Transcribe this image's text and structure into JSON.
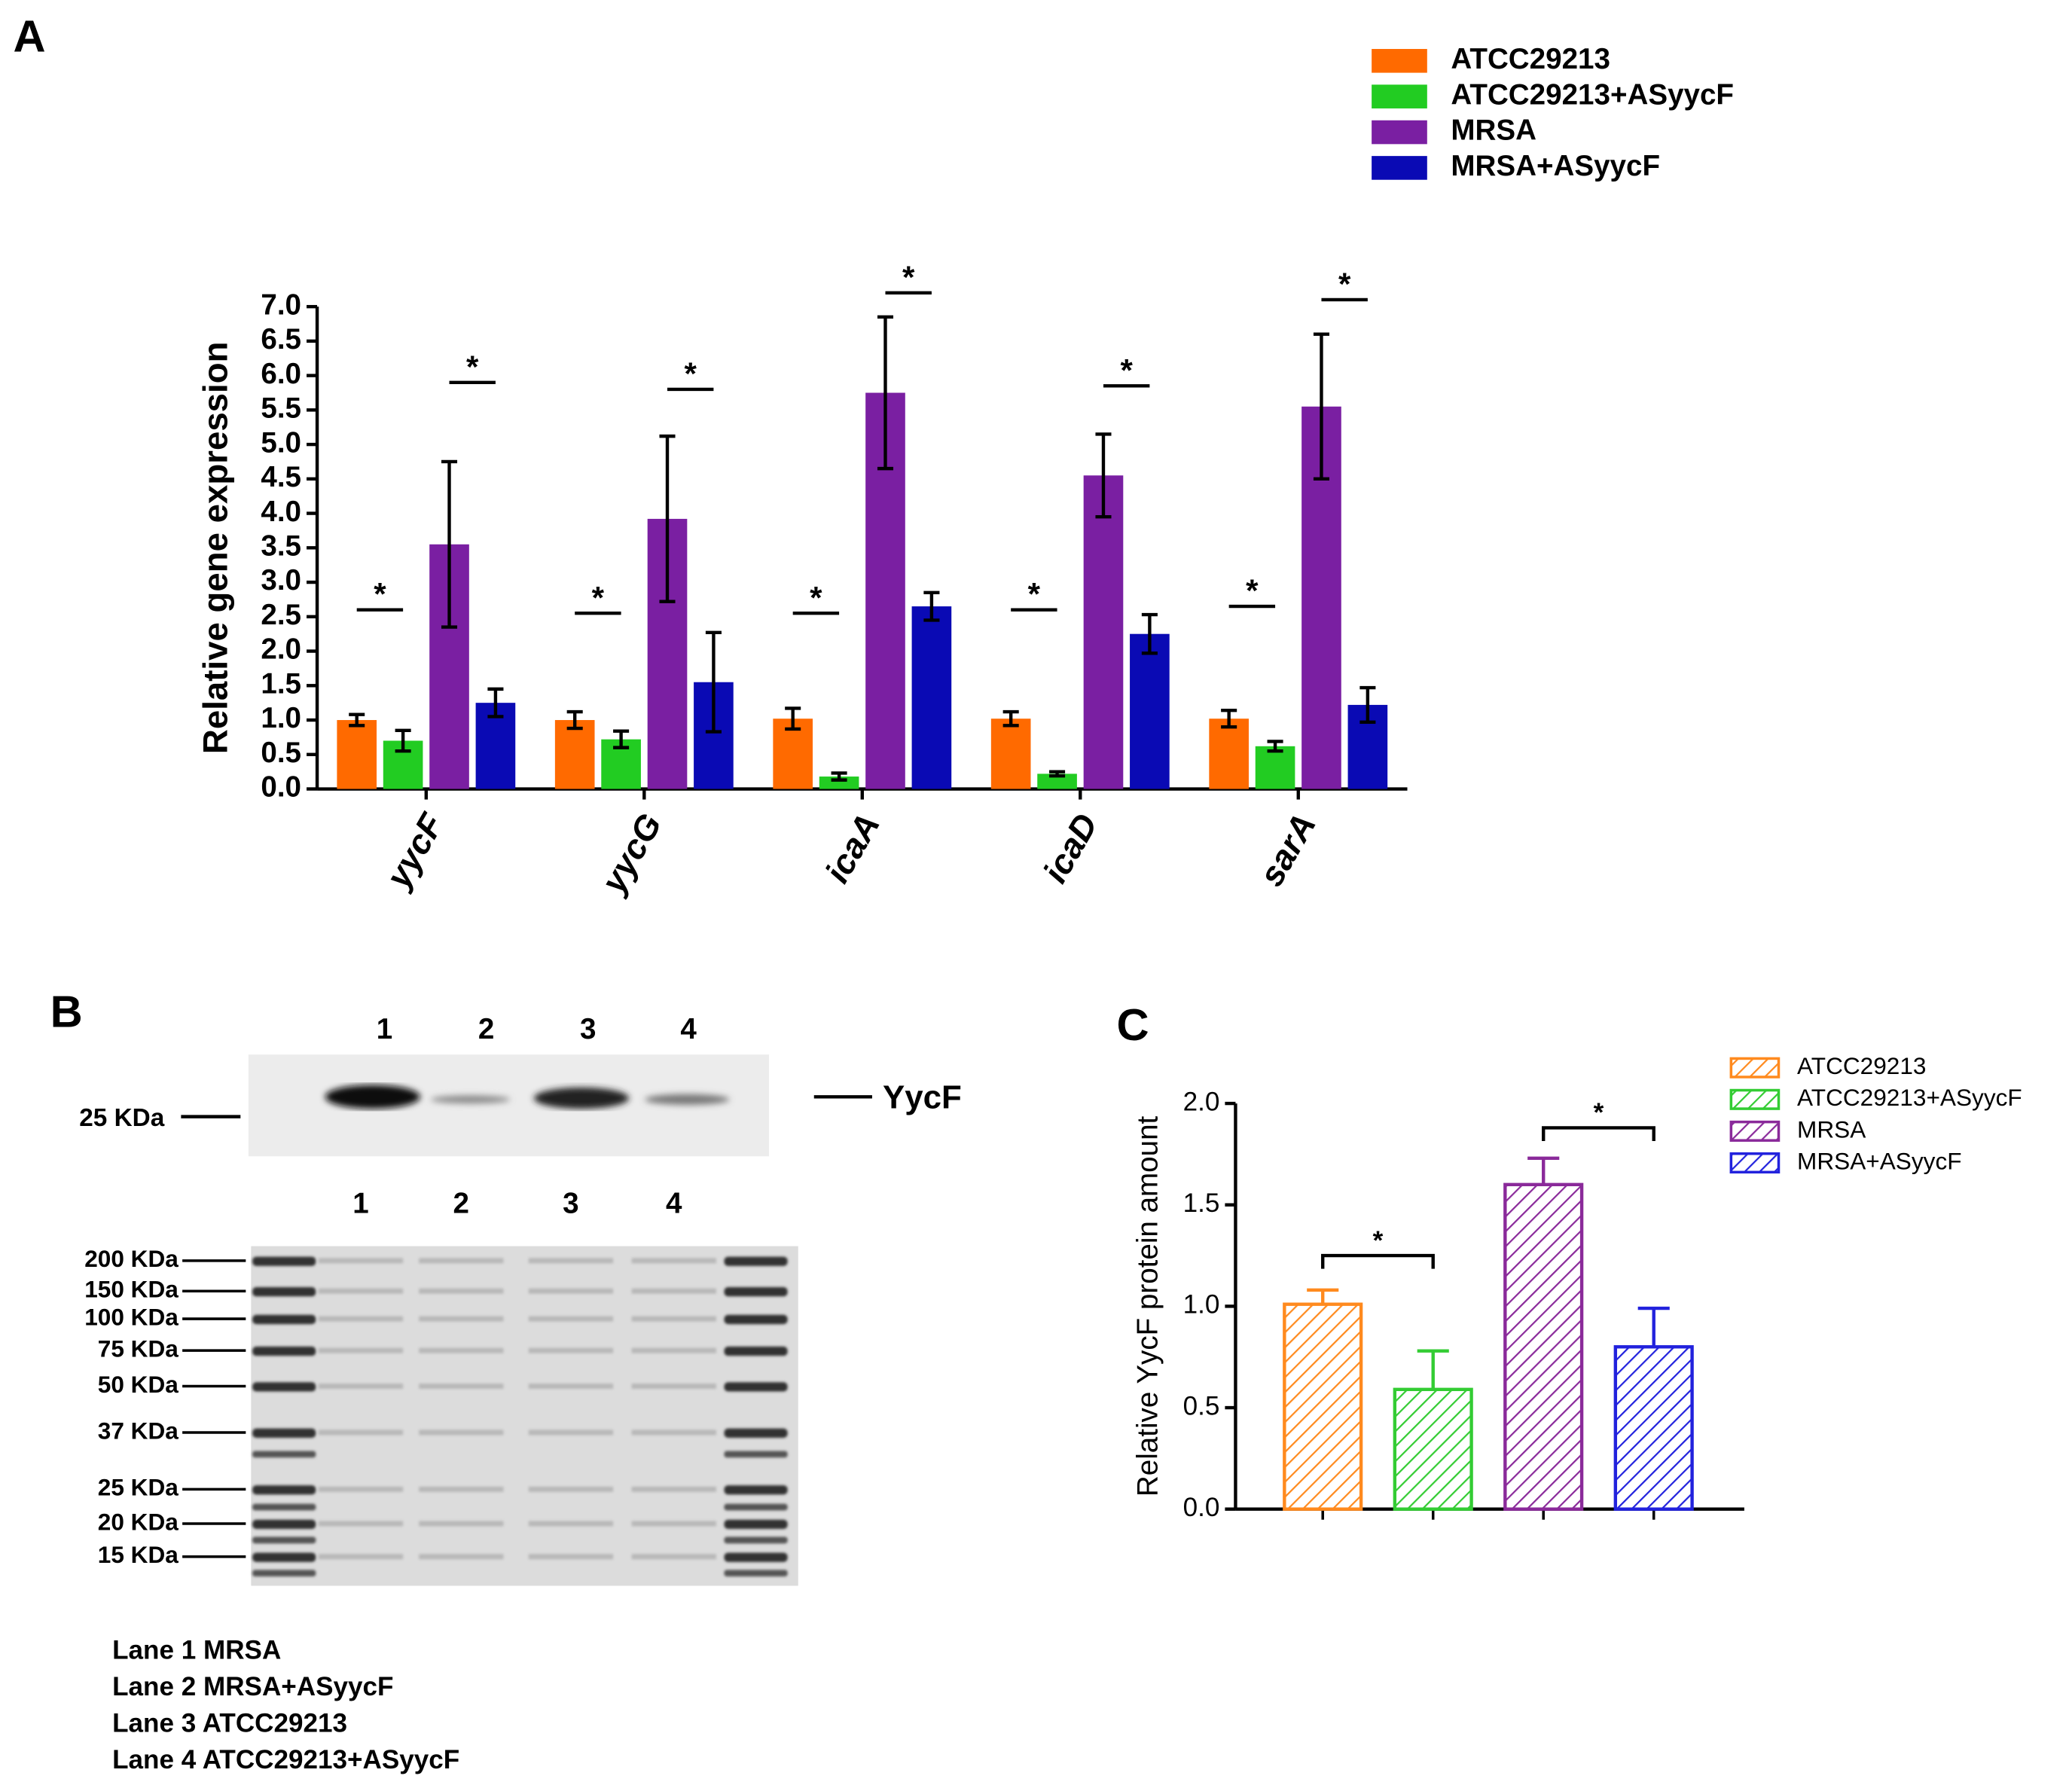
{
  "chart_data": [
    {
      "panel": "A",
      "type": "bar",
      "ylabel": "Relative gene expression",
      "categories": [
        "yycF",
        "yycG",
        "icaA",
        "icaD",
        "sarA"
      ],
      "series": [
        {
          "name": "ATCC29213",
          "color": "#ff6a00",
          "values": [
            1.0,
            1.0,
            1.02,
            1.02,
            1.02
          ],
          "errors": [
            0.08,
            0.12,
            0.15,
            0.1,
            0.12
          ]
        },
        {
          "name": "ATCC29213+ASyycF",
          "color": "#22cc22",
          "values": [
            0.7,
            0.72,
            0.18,
            0.22,
            0.62
          ],
          "errors": [
            0.15,
            0.12,
            0.05,
            0.03,
            0.07
          ]
        },
        {
          "name": "MRSA",
          "color": "#7a1fa2",
          "values": [
            3.55,
            3.92,
            5.75,
            4.55,
            5.55
          ],
          "errors": [
            1.2,
            1.2,
            1.1,
            0.6,
            1.05
          ]
        },
        {
          "name": "MRSA+ASyycF",
          "color": "#0a0ab4",
          "values": [
            1.25,
            1.55,
            2.65,
            2.25,
            1.22
          ],
          "errors": [
            0.2,
            0.72,
            0.2,
            0.28,
            0.25
          ]
        }
      ],
      "ylim": [
        0,
        7
      ],
      "yticks": [
        {
          "value": 0,
          "label": "0.0"
        },
        0.5,
        {
          "value": 1,
          "label": "1.0"
        },
        1.5,
        {
          "value": 2,
          "label": "2.0"
        },
        2.5,
        {
          "value": 3,
          "label": "3.0"
        },
        3.5,
        {
          "value": 4,
          "label": "4.0"
        },
        4.5,
        {
          "value": 5,
          "label": "5.0"
        },
        5.5,
        {
          "value": 6,
          "label": "6.0"
        },
        6.5,
        {
          "value": 7,
          "label": "7.0"
        }
      ],
      "legend": "upper right",
      "annotations": [
        {
          "text": "*",
          "category": "yycF",
          "series": [
            "ATCC29213",
            "ATCC29213+ASyycF"
          ],
          "y": 2.6
        },
        {
          "text": "*",
          "category": "yycF",
          "series": [
            "MRSA",
            "MRSA+ASyycF"
          ],
          "y": 5.9
        },
        {
          "text": "*",
          "category": "yycG",
          "series": [
            "ATCC29213",
            "ATCC29213+ASyycF"
          ],
          "y": 2.55
        },
        {
          "text": "*",
          "category": "yycG",
          "series": [
            "MRSA",
            "MRSA+ASyycF"
          ],
          "y": 5.8
        },
        {
          "text": "*",
          "category": "icaA",
          "series": [
            "ATCC29213",
            "ATCC29213+ASyycF"
          ],
          "y": 2.55
        },
        {
          "text": "*",
          "category": "icaA",
          "series": [
            "MRSA",
            "MRSA+ASyycF"
          ],
          "y": 7.2
        },
        {
          "text": "*",
          "category": "icaD",
          "series": [
            "ATCC29213",
            "ATCC29213+ASyycF"
          ],
          "y": 2.6
        },
        {
          "text": "*",
          "category": "icaD",
          "series": [
            "MRSA",
            "MRSA+ASyycF"
          ],
          "y": 5.85
        },
        {
          "text": "*",
          "category": "sarA",
          "series": [
            "ATCC29213",
            "ATCC29213+ASyycF"
          ],
          "y": 2.65
        },
        {
          "text": "*",
          "category": "sarA",
          "series": [
            "MRSA",
            "MRSA+ASyycF"
          ],
          "y": 7.1
        }
      ]
    },
    {
      "panel": "C",
      "type": "bar",
      "hatch": true,
      "ylabel": "Relative YycF protein amount",
      "series": [
        {
          "name": "ATCC29213",
          "color": "#ff8a1e",
          "values": [
            1.01
          ],
          "errors": [
            0.07
          ]
        },
        {
          "name": "ATCC29213+ASyycF",
          "color": "#33cc33",
          "values": [
            0.59
          ],
          "errors": [
            0.19
          ]
        },
        {
          "name": "MRSA",
          "color": "#8a2a9a",
          "values": [
            1.6
          ],
          "errors": [
            0.13
          ]
        },
        {
          "name": "MRSA+ASyycF",
          "color": "#2222dd",
          "values": [
            0.8
          ],
          "errors": [
            0.19
          ]
        }
      ],
      "ylim": [
        0,
        2
      ],
      "yticks": [
        {
          "value": 0,
          "label": "0.0"
        },
        0.5,
        {
          "value": 1,
          "label": "1.0"
        },
        1.5,
        {
          "value": 2,
          "label": "2.0"
        }
      ],
      "legend": "upper right",
      "annotations": [
        {
          "text": "*",
          "series": [
            "ATCC29213",
            "ATCC29213+ASyycF"
          ],
          "y": 1.25
        },
        {
          "text": "*",
          "series": [
            "MRSA",
            "MRSA+ASyycF"
          ],
          "y": 1.88
        }
      ]
    }
  ],
  "gel": {
    "panel": "B",
    "blot_lanes": [
      "1",
      "2",
      "3",
      "4"
    ],
    "blot_marker": "25 KDa",
    "blot_band": "YycF",
    "gel_lanes": [
      "1",
      "2",
      "3",
      "4"
    ],
    "markers": [
      "200 KDa",
      "150 KDa",
      "100 KDa",
      "75 KDa",
      "50 KDa",
      "37 KDa",
      "25 KDa",
      "20 KDa",
      "15 KDa"
    ],
    "lane_legend": [
      "Lane 1 MRSA",
      "Lane 2 MRSA+ASyycF",
      "Lane 3 ATCC29213",
      "Lane 4 ATCC29213+ASyycF"
    ]
  }
}
